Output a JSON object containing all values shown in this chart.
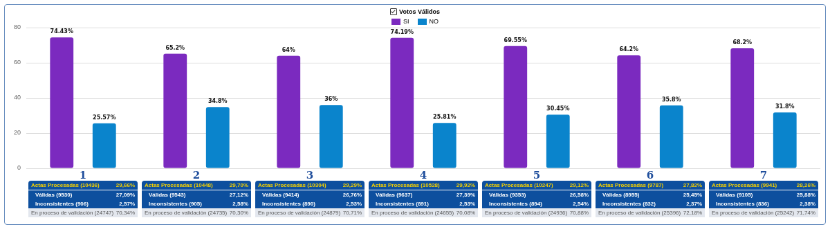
{
  "chart_data": {
    "type": "bar",
    "legend_title": "Votos Válidos",
    "legend": "top",
    "categories": [
      "1",
      "2",
      "3",
      "4",
      "5",
      "6",
      "7"
    ],
    "series": [
      {
        "name": "SI",
        "color": "#7b2abf",
        "values": [
          74.43,
          65.2,
          64,
          74.19,
          69.55,
          64.2,
          68.2
        ]
      },
      {
        "name": "NO",
        "color": "#0a84cc",
        "values": [
          25.57,
          34.8,
          36,
          25.81,
          30.45,
          35.8,
          31.8
        ]
      }
    ],
    "value_labels": [
      [
        "74.43%",
        "65.2%",
        "64%",
        "74.19%",
        "69.55%",
        "64.2%",
        "68.2%"
      ],
      [
        "25.57%",
        "34.8%",
        "36%",
        "25.81%",
        "30.45%",
        "35.8%",
        "31.8%"
      ]
    ],
    "ylim": [
      0,
      80
    ],
    "yticks": [
      0,
      20,
      40,
      60,
      80
    ],
    "grid": "y",
    "annotations": [
      "Actas Procesadas (10436)",
      "29,66%",
      "Válidas (9530)",
      "27,09%",
      "Inconsistentes (906)",
      "2,57%",
      "En proceso de validación (24747)",
      "70,34%",
      "Actas Procesadas (10448)",
      "29,70%",
      "Válidas (9543)",
      "27,12%",
      "Inconsistentes (905)",
      "2,58%",
      "En proceso de validación (24735)",
      "70,30%",
      "Actas Procesadas (10304)",
      "29,29%",
      "Válidas (9414)",
      "26,76%",
      "Inconsistentes (890)",
      "2,53%",
      "En proceso de validación (24879)",
      "70,71%",
      "Actas Procesadas (10528)",
      "29,92%",
      "Válidas (9637)",
      "27,39%",
      "Inconsistentes (891)",
      "2,53%",
      "En proceso de validación (24655)",
      "70,08%",
      "Actas Procesadas (10247)",
      "29,12%",
      "Válidas (9353)",
      "26,58%",
      "Inconsistentes (894)",
      "2,54%",
      "En proceso de validación (24936)",
      "70,88%",
      "Actas Procesadas (9787)",
      "27,82%",
      "Válidas (8955)",
      "25,45%",
      "Inconsistentes (832)",
      "2,37%",
      "En proceso de validación (25396)",
      "72,18%",
      "Actas Procesadas (9941)",
      "28,26%",
      "Válidas (9105)",
      "25,88%",
      "Inconsistentes (836)",
      "2,38%",
      "En proceso de validación (25242)",
      "71,74%"
    ]
  }
}
